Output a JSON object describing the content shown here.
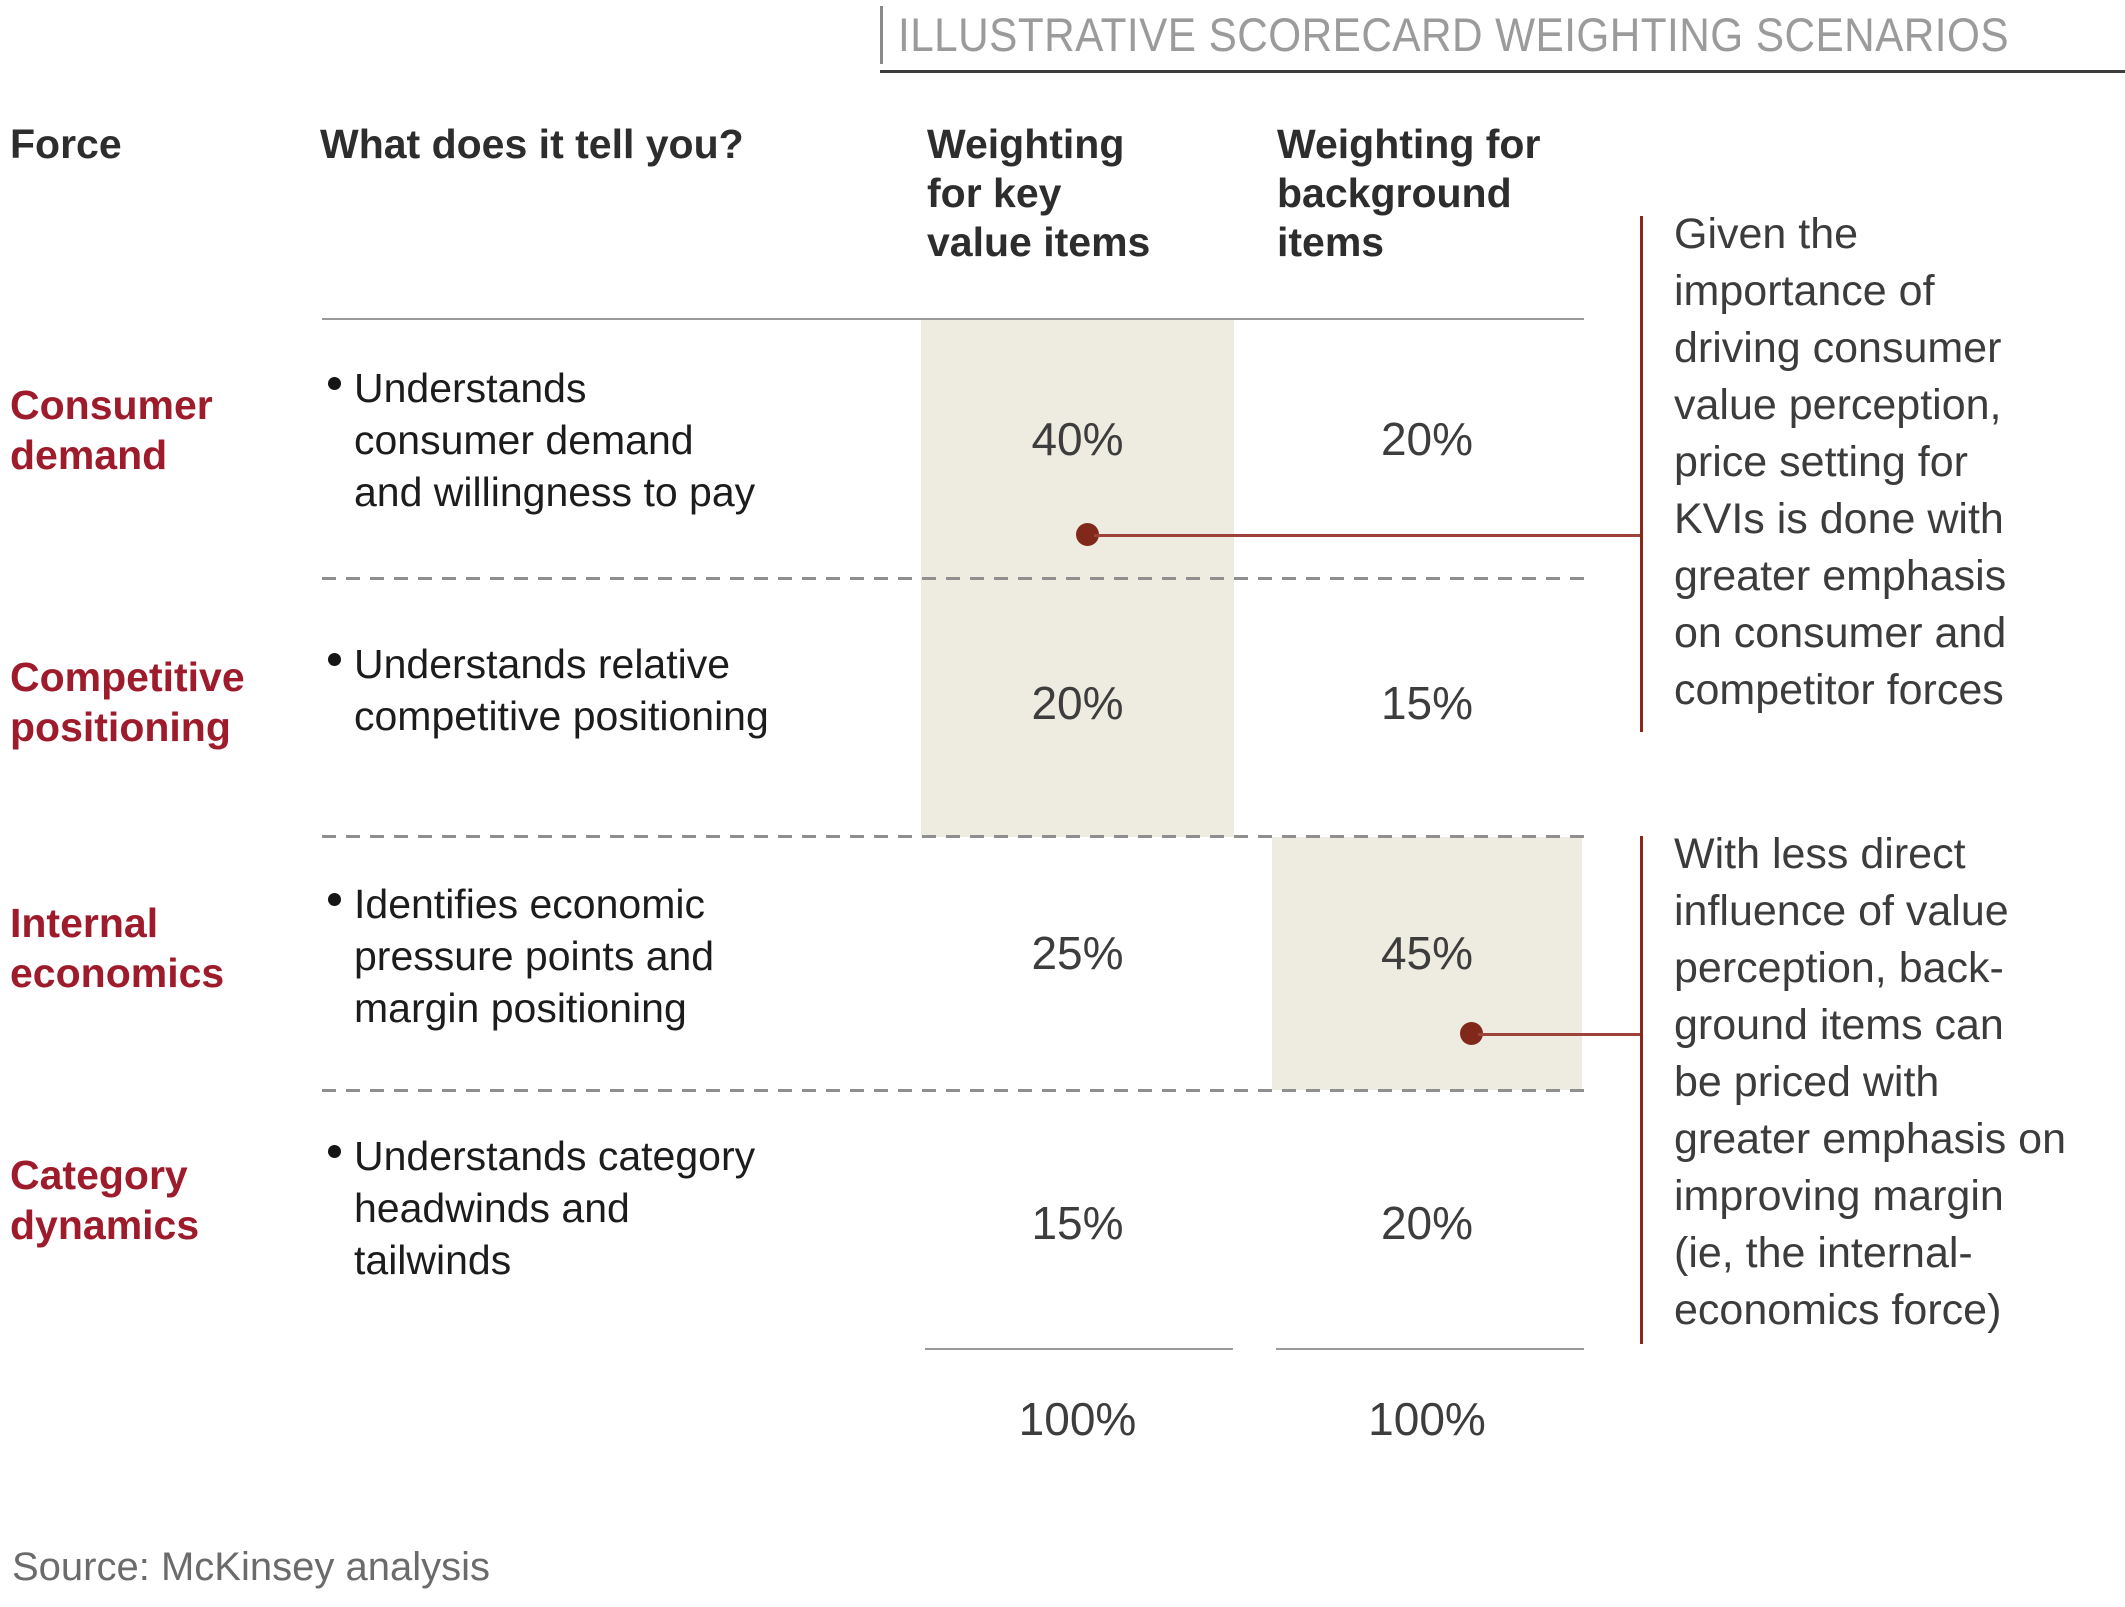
{
  "title_tag": "ILLUSTRATIVE SCORECARD WEIGHTING SCENARIOS",
  "columns": {
    "force": "Force",
    "description": "What does it tell you?",
    "kvi": "Weighting\nfor key\nvalue items",
    "background": "Weighting for\nbackground\nitems"
  },
  "rows": [
    {
      "force": "Consumer\ndemand",
      "description": "Understands\nconsumer demand\nand willingness to pay",
      "kvi": "40%",
      "background": "20%"
    },
    {
      "force": "Competitive\npositioning",
      "description": "Understands relative\ncompetitive positioning",
      "kvi": "20%",
      "background": "15%"
    },
    {
      "force": "Internal\neconomics",
      "description": "Identifies economic\npressure points and\nmargin positioning",
      "kvi": "25%",
      "background": "45%"
    },
    {
      "force": "Category\ndynamics",
      "description": "Understands category\nheadwinds and\ntailwinds",
      "kvi": "15%",
      "background": "20%"
    }
  ],
  "totals": {
    "kvi": "100%",
    "background": "100%"
  },
  "annotations": [
    {
      "text": "Given the\nimportance of\ndriving consumer\nvalue perception,\nprice setting for\nKVIs is done with\ngreater emphasis\non consumer and\ncompetitor forces"
    },
    {
      "text": "With less direct\ninfluence of value\nperception, back-\nground items can\nbe priced with\ngreater emphasis on\nimproving margin\n(ie, the internal-\neconomics force)"
    }
  ],
  "source": "Source: McKinsey analysis",
  "colors": {
    "force_red": "#9E1B2C",
    "beige": "#EEECE1",
    "dot_red": "#82281A",
    "line_red": "#9C4238",
    "rule_red": "#8B2718",
    "title_gray": "#9B9B9B",
    "text_dark": "#1C1C1C",
    "annotation_gray": "#3C3C3C",
    "source_gray": "#6B6B6B"
  },
  "chart_data": {
    "type": "table",
    "title": "ILLUSTRATIVE SCORECARD WEIGHTING SCENARIOS",
    "columns": [
      "Force",
      "What does it tell you?",
      "Weighting for key value items",
      "Weighting for background items"
    ],
    "rows": [
      [
        "Consumer demand",
        "Understands consumer demand and willingness to pay",
        "40%",
        "20%"
      ],
      [
        "Competitive positioning",
        "Understands relative competitive positioning",
        "20%",
        "15%"
      ],
      [
        "Internal economics",
        "Identifies economic pressure points and margin positioning",
        "25%",
        "45%"
      ],
      [
        "Category dynamics",
        "Understands category headwinds and tailwinds",
        "15%",
        "20%"
      ]
    ],
    "totals_row": [
      "",
      "",
      "100%",
      "100%"
    ],
    "highlights": [
      {
        "column": "Weighting for key value items",
        "rows": [
          "Consumer demand",
          "Competitive positioning"
        ],
        "annotation": "Given the importance of driving consumer value perception, price setting for KVIs is done with greater emphasis on consumer and competitor forces"
      },
      {
        "column": "Weighting for background items",
        "rows": [
          "Internal economics"
        ],
        "annotation": "With less direct influence of value perception, background items can be priced with greater emphasis on improving margin (ie, the internal-economics force)"
      }
    ],
    "source": "Source: McKinsey analysis"
  }
}
